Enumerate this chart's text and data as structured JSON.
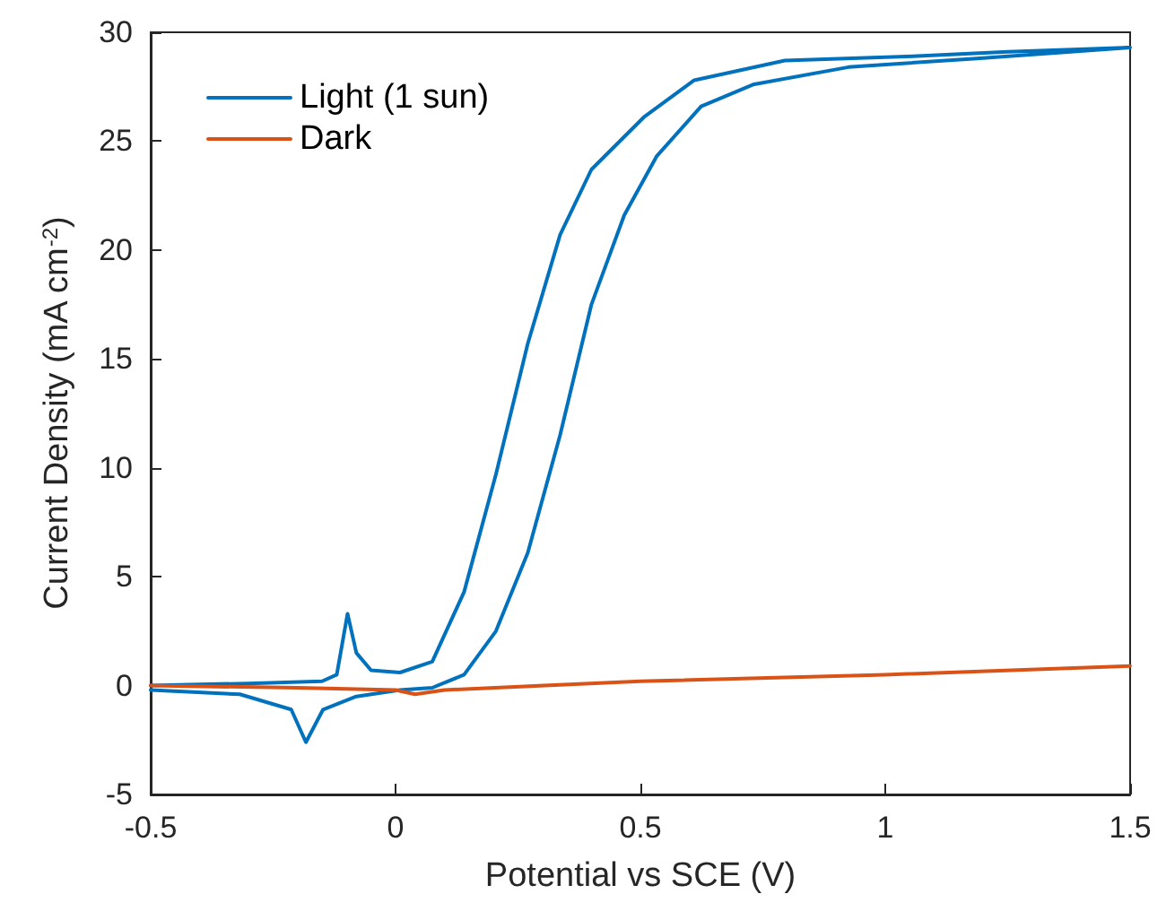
{
  "chart_data": {
    "type": "line",
    "xlabel": "Potential vs SCE (V)",
    "ylabel": "Current Density (mA cm$^{-2}$)",
    "xlim": [
      -0.5,
      1.5
    ],
    "xticks": [
      -0.5,
      0,
      0.5,
      1,
      1.5
    ],
    "ylim": [
      -5,
      30
    ],
    "yticks": [
      -5,
      0,
      5,
      10,
      15,
      20,
      25,
      30
    ],
    "grid": false,
    "legend": "top left",
    "marker": "none",
    "line_style": "solid",
    "series": [
      {
        "name": "Light (1 sun)",
        "color": "#0072bd",
        "x": [
          -0.5,
          -0.3,
          -0.15,
          -0.12,
          -0.098,
          -0.08,
          -0.05,
          0.009,
          0.075,
          0.14,
          0.205,
          0.27,
          0.336,
          0.4,
          0.507,
          0.61,
          0.795,
          1.056,
          1.25,
          1.5,
          1.187,
          0.925,
          0.73,
          0.624,
          0.533,
          0.467,
          0.4,
          0.336,
          0.27,
          0.205,
          0.14,
          0.075,
          0.009,
          -0.08,
          -0.148,
          -0.183,
          -0.213,
          -0.318,
          -0.5
        ],
        "values": [
          0,
          0.1,
          0.2,
          0.5,
          3.3,
          1.5,
          0.7,
          0.6,
          1.1,
          4.3,
          9.7,
          15.7,
          20.7,
          23.7,
          26.1,
          27.8,
          28.7,
          28.9,
          29.1,
          29.3,
          28.8,
          28.4,
          27.6,
          26.6,
          24.3,
          21.6,
          17.5,
          11.5,
          6.1,
          2.5,
          0.5,
          -0.1,
          -0.2,
          -0.5,
          -1.1,
          -2.6,
          -1.1,
          -0.4,
          -0.2
        ]
      },
      {
        "name": "Dark",
        "color": "#d95319",
        "x": [
          -0.5,
          -0.2,
          0,
          0.04,
          0.1,
          0.5,
          1,
          1.5
        ],
        "values": [
          0,
          -0.1,
          -0.2,
          -0.4,
          -0.2,
          0.2,
          0.5,
          0.9
        ]
      }
    ]
  }
}
